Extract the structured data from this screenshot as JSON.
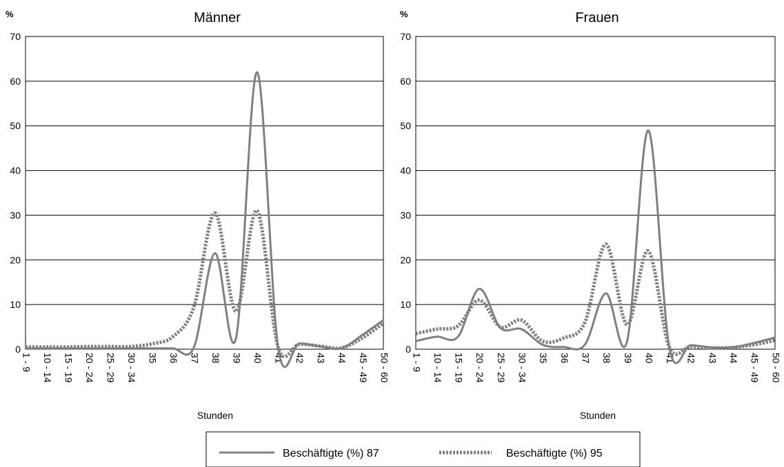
{
  "chart_data": [
    {
      "type": "line",
      "title": "Männer",
      "ylabel": "%",
      "xlabel": "Stunden",
      "ylim": [
        0,
        70
      ],
      "yticks": [
        "0",
        "10",
        "20",
        "30",
        "40",
        "50",
        "60",
        "70"
      ],
      "categories": [
        "1 - 9",
        "10 - 14",
        "15 - 19",
        "20 - 24",
        "25 - 29",
        "30 - 34",
        "35",
        "36",
        "37",
        "38",
        "39",
        "40",
        "41",
        "42",
        "43",
        "44",
        "45 - 49",
        "50 - 60"
      ],
      "grid": "horizontal",
      "series": [
        {
          "name": "Beschäftigte (%) 87",
          "style": "solid",
          "color": "#7f7f7f",
          "values": [
            0.2,
            0.2,
            0.2,
            0.2,
            0.2,
            0.2,
            0.2,
            0.2,
            0.4,
            21.5,
            2.5,
            62,
            0.3,
            1.3,
            0.6,
            0.2,
            3.2,
            6.5
          ]
        },
        {
          "name": "Beschäftigte (%) 95",
          "style": "dotted",
          "color": "#7f7f7f",
          "values": [
            0.5,
            0.5,
            0.5,
            0.6,
            0.6,
            0.6,
            1.2,
            2.8,
            9.5,
            30.5,
            8.5,
            31,
            0.4,
            1.1,
            0.7,
            0.3,
            2.5,
            5.8
          ]
        }
      ]
    },
    {
      "type": "line",
      "title": "Frauen",
      "ylabel": "%",
      "xlabel": "Stunden",
      "ylim": [
        0,
        70
      ],
      "yticks": [
        "0",
        "10",
        "20",
        "30",
        "40",
        "50",
        "60",
        "70"
      ],
      "categories": [
        "1 - 9",
        "10 - 14",
        "15 - 19",
        "20 - 24",
        "25 - 29",
        "30 - 34",
        "35",
        "36",
        "37",
        "38",
        "39",
        "40",
        "41",
        "42",
        "43",
        "44",
        "45 - 49",
        "50 - 60"
      ],
      "grid": "horizontal",
      "series": [
        {
          "name": "Beschäftigte (%) 87",
          "style": "solid",
          "color": "#7f7f7f",
          "values": [
            1.8,
            2.8,
            2.8,
            13.5,
            4.8,
            4.5,
            1.0,
            0.5,
            1.0,
            12.5,
            1.8,
            49,
            0.3,
            0.9,
            0.4,
            0.4,
            1.4,
            2.6
          ]
        },
        {
          "name": "Beschäftigte (%) 95",
          "style": "dotted",
          "color": "#7f7f7f",
          "values": [
            3.5,
            4.5,
            5.2,
            11.0,
            5.0,
            6.5,
            1.8,
            2.5,
            6.0,
            23.5,
            5.5,
            22,
            0.4,
            0.6,
            0.3,
            0.4,
            1.0,
            2.0
          ]
        }
      ]
    }
  ],
  "legend": {
    "position": "bottom-center",
    "items": [
      {
        "label": "Beschäftigte (%) 87",
        "style": "solid"
      },
      {
        "label": "Beschäftigte (%) 95",
        "style": "dotted"
      }
    ]
  }
}
